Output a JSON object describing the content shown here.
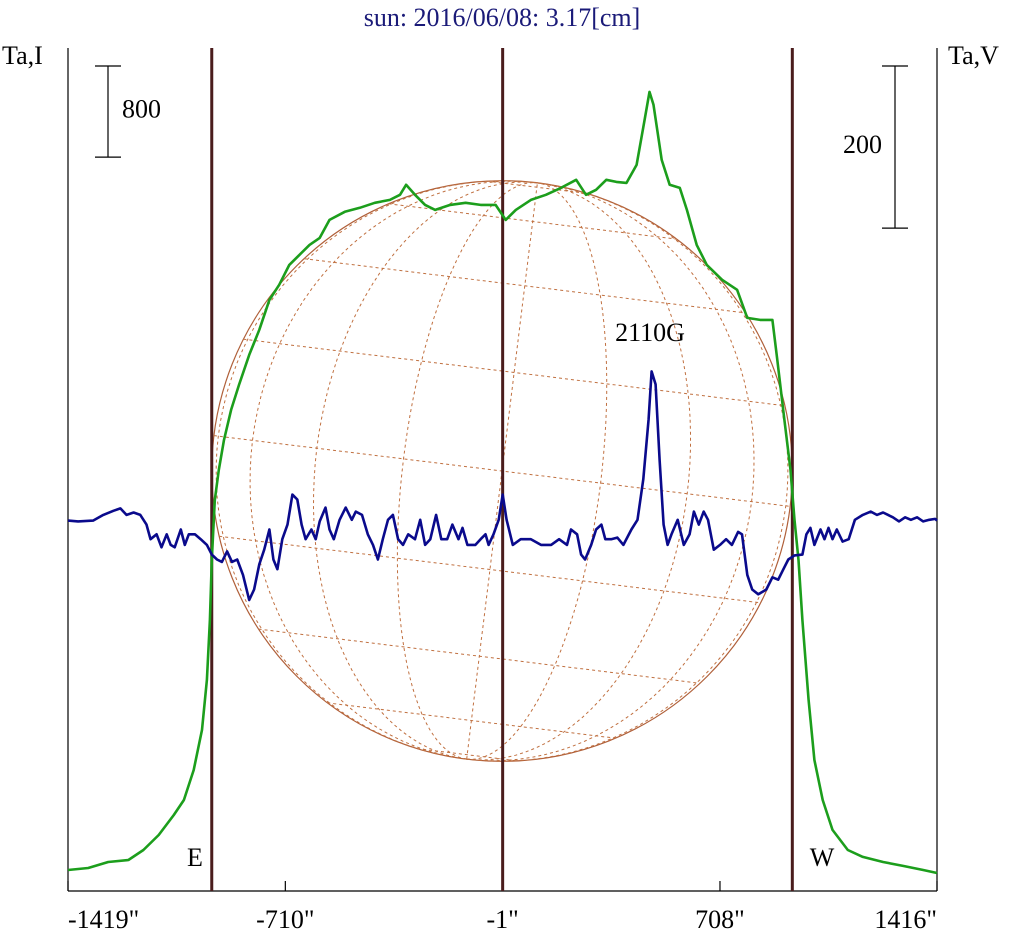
{
  "chart_data": {
    "type": "line",
    "title": "sun: 2016/06/08: 3.17[cm]",
    "ylabel": "Ta,I",
    "y2label": "Ta,V",
    "xlim": [
      -1419,
      1416
    ],
    "xticks": [
      {
        "value": -1419,
        "label": "-1419\""
      },
      {
        "value": -710,
        "label": "-710\""
      },
      {
        "value": -1,
        "label": "-1\""
      },
      {
        "value": 708,
        "label": "708\""
      },
      {
        "value": 1416,
        "label": "1416\""
      }
    ],
    "ylim": [
      0,
      7400
    ],
    "y2lim": [
      -457,
      583
    ],
    "y_scale_bar": 800,
    "y2_scale_bar": 200,
    "limb_lines": [
      -950,
      -1,
      944
    ],
    "annotations": [
      "E",
      "W",
      "2110G"
    ],
    "series": [
      {
        "color": "#1c9e1c",
        "x": [
          -1419,
          -1353,
          -1288,
          -1222,
          -1173,
          -1123,
          -1074,
          -1041,
          -1009,
          -982,
          -966,
          -956,
          -950,
          -940,
          -927,
          -910,
          -887,
          -861,
          -828,
          -795,
          -762,
          -730,
          -697,
          -664,
          -631,
          -598,
          -566,
          -516,
          -467,
          -418,
          -369,
          -336,
          -316,
          -287,
          -254,
          -221,
          -172,
          -122,
          -73,
          -24,
          9,
          42,
          91,
          140,
          189,
          239,
          271,
          304,
          337,
          370,
          403,
          436,
          462,
          478,
          491,
          518,
          544,
          577,
          600,
          632,
          665,
          715,
          764,
          797,
          839,
          879,
          895,
          918,
          938,
          951,
          964,
          977,
          997,
          1016,
          1043,
          1075,
          1125,
          1174,
          1240,
          1305,
          1371,
          1416
        ],
        "values": [
          184,
          202,
          255,
          272,
          360,
          492,
          667,
          799,
          1062,
          1414,
          1853,
          2379,
          2906,
          3433,
          3696,
          3960,
          4223,
          4443,
          4706,
          4926,
          5189,
          5321,
          5496,
          5584,
          5672,
          5733,
          5891,
          5962,
          5997,
          6041,
          6067,
          6111,
          6199,
          6111,
          6023,
          5979,
          6023,
          6041,
          6023,
          6023,
          5891,
          5979,
          6067,
          6111,
          6172,
          6243,
          6111,
          6155,
          6243,
          6225,
          6216,
          6374,
          6769,
          7015,
          6901,
          6418,
          6199,
          6172,
          5979,
          5672,
          5496,
          5365,
          5277,
          5031,
          5013,
          5013,
          4662,
          4135,
          3696,
          3257,
          2906,
          2379,
          1677,
          1150,
          799,
          536,
          360,
          299,
          255,
          220,
          184,
          158
        ]
      },
      {
        "color": "#0a0a8c",
        "axis": "y2",
        "x": [
          -1419,
          -1386,
          -1337,
          -1304,
          -1271,
          -1248,
          -1228,
          -1205,
          -1183,
          -1163,
          -1150,
          -1130,
          -1114,
          -1097,
          -1084,
          -1071,
          -1051,
          -1038,
          -1025,
          -1005,
          -986,
          -966,
          -950,
          -933,
          -917,
          -900,
          -884,
          -867,
          -848,
          -828,
          -812,
          -795,
          -779,
          -762,
          -749,
          -736,
          -720,
          -703,
          -687,
          -671,
          -657,
          -644,
          -625,
          -611,
          -598,
          -579,
          -566,
          -552,
          -533,
          -513,
          -493,
          -480,
          -460,
          -441,
          -424,
          -408,
          -392,
          -375,
          -359,
          -342,
          -326,
          -309,
          -287,
          -270,
          -254,
          -237,
          -218,
          -201,
          -182,
          -165,
          -145,
          -132,
          -116,
          -90,
          -73,
          -57,
          -47,
          -31,
          -14,
          -1,
          12,
          32,
          58,
          91,
          124,
          157,
          183,
          209,
          222,
          242,
          255,
          268,
          288,
          304,
          321,
          334,
          353,
          373,
          393,
          419,
          439,
          458,
          475,
          485,
          498,
          511,
          524,
          537,
          550,
          570,
          590,
          609,
          623,
          639,
          655,
          669,
          688,
          708,
          728,
          747,
          767,
          780,
          797,
          813,
          833,
          859,
          879,
          898,
          915,
          931,
          951,
          977,
          990,
          1003,
          1016,
          1036,
          1049,
          1062,
          1075,
          1089,
          1108,
          1128,
          1148,
          1174,
          1200,
          1220,
          1240,
          1272,
          1292,
          1312,
          1331,
          1351,
          1371,
          1391,
          1410,
          1416
        ],
        "values": [
          0,
          -1,
          0,
          7,
          12,
          15,
          7,
          10,
          7,
          -5,
          -23,
          -17,
          -33,
          -17,
          -30,
          -33,
          -11,
          -30,
          -17,
          -17,
          -23,
          -30,
          -42,
          -48,
          -51,
          -38,
          -51,
          -48,
          -67,
          -98,
          -85,
          -54,
          -36,
          -11,
          -48,
          -60,
          -23,
          -5,
          32,
          26,
          -5,
          -23,
          -11,
          -23,
          -1,
          16,
          -11,
          -23,
          1,
          16,
          1,
          11,
          7,
          -17,
          -30,
          -48,
          -23,
          1,
          7,
          -23,
          -30,
          -17,
          -23,
          1,
          -30,
          -23,
          7,
          -23,
          -23,
          -5,
          -23,
          -9,
          -30,
          -30,
          -23,
          -17,
          -30,
          -17,
          1,
          32,
          1,
          -30,
          -23,
          -23,
          -30,
          -30,
          -23,
          -30,
          -11,
          -17,
          -42,
          -48,
          -30,
          -11,
          -5,
          -23,
          -23,
          -21,
          -30,
          -11,
          1,
          51,
          125,
          184,
          168,
          75,
          -5,
          -30,
          -17,
          1,
          -30,
          -17,
          11,
          -5,
          11,
          1,
          -36,
          -30,
          -23,
          -30,
          -14,
          -17,
          -67,
          -85,
          -91,
          -85,
          -70,
          -73,
          -60,
          -48,
          -43,
          -42,
          -17,
          -9,
          -30,
          -11,
          -23,
          -9,
          -23,
          -11,
          -26,
          -23,
          1,
          7,
          11,
          7,
          10,
          4,
          -1,
          4,
          1,
          4,
          -1,
          1,
          2,
          0
        ]
      }
    ]
  }
}
